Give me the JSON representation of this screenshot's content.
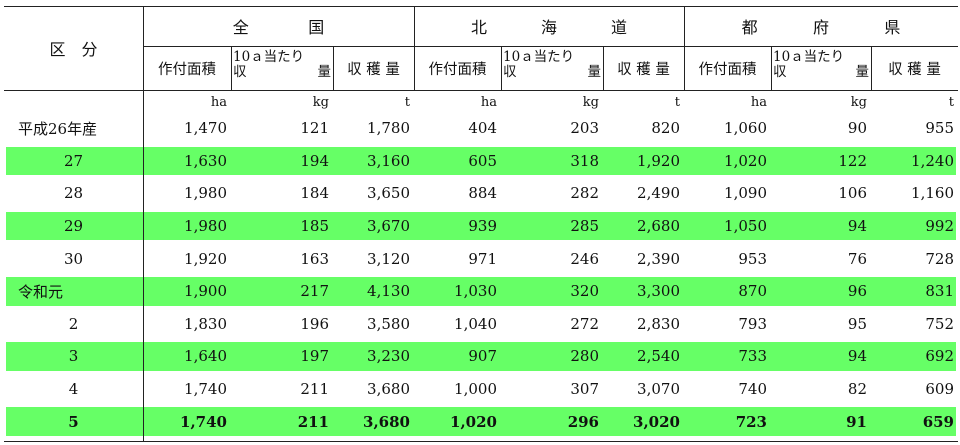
{
  "header": {
    "label_col": "区　分",
    "regions": [
      {
        "chars": [
          "全",
          "国"
        ]
      },
      {
        "chars": [
          "北",
          "海",
          "道"
        ]
      },
      {
        "chars": [
          "都",
          "府",
          "県"
        ]
      }
    ],
    "sub": {
      "area": "作付面積",
      "yield_line1": "10ａ当たり",
      "yield_line2a": "収",
      "yield_line2b": "量",
      "harvest": "収 穫 量"
    }
  },
  "units": [
    "ha",
    "kg",
    "t",
    "ha",
    "kg",
    "t",
    "ha",
    "kg",
    "t"
  ],
  "rows": [
    {
      "label": "平成26年産",
      "align": "left",
      "highlight": false,
      "values": [
        "1,470",
        "121",
        "1,780",
        "404",
        "203",
        "820",
        "1,060",
        "90",
        "955"
      ]
    },
    {
      "label": "27",
      "align": "center",
      "highlight": true,
      "values": [
        "1,630",
        "194",
        "3,160",
        "605",
        "318",
        "1,920",
        "1,020",
        "122",
        "1,240"
      ]
    },
    {
      "label": "28",
      "align": "center",
      "highlight": false,
      "values": [
        "1,980",
        "184",
        "3,650",
        "884",
        "282",
        "2,490",
        "1,090",
        "106",
        "1,160"
      ]
    },
    {
      "label": "29",
      "align": "center",
      "highlight": true,
      "values": [
        "1,980",
        "185",
        "3,670",
        "939",
        "285",
        "2,680",
        "1,050",
        "94",
        "992"
      ]
    },
    {
      "label": "30",
      "align": "center",
      "highlight": false,
      "values": [
        "1,920",
        "163",
        "3,120",
        "971",
        "246",
        "2,390",
        "953",
        "76",
        "728"
      ]
    },
    {
      "label": "令和元",
      "align": "left",
      "highlight": true,
      "values": [
        "1,900",
        "217",
        "4,130",
        "1,030",
        "320",
        "3,300",
        "870",
        "96",
        "831"
      ]
    },
    {
      "label": "2",
      "align": "center",
      "highlight": false,
      "values": [
        "1,830",
        "196",
        "3,580",
        "1,040",
        "272",
        "2,830",
        "793",
        "95",
        "752"
      ]
    },
    {
      "label": "3",
      "align": "center",
      "highlight": true,
      "values": [
        "1,640",
        "197",
        "3,230",
        "907",
        "280",
        "2,540",
        "733",
        "94",
        "692"
      ]
    },
    {
      "label": "4",
      "align": "center",
      "highlight": false,
      "values": [
        "1,740",
        "211",
        "3,680",
        "1,000",
        "307",
        "3,070",
        "740",
        "82",
        "609"
      ]
    },
    {
      "label": "5",
      "align": "center",
      "highlight": true,
      "bold": true,
      "values": [
        "1,740",
        "211",
        "3,680",
        "1,020",
        "296",
        "3,020",
        "723",
        "91",
        "659"
      ]
    }
  ],
  "colors": {
    "highlight": "#66ff66",
    "rule": "#222222"
  }
}
